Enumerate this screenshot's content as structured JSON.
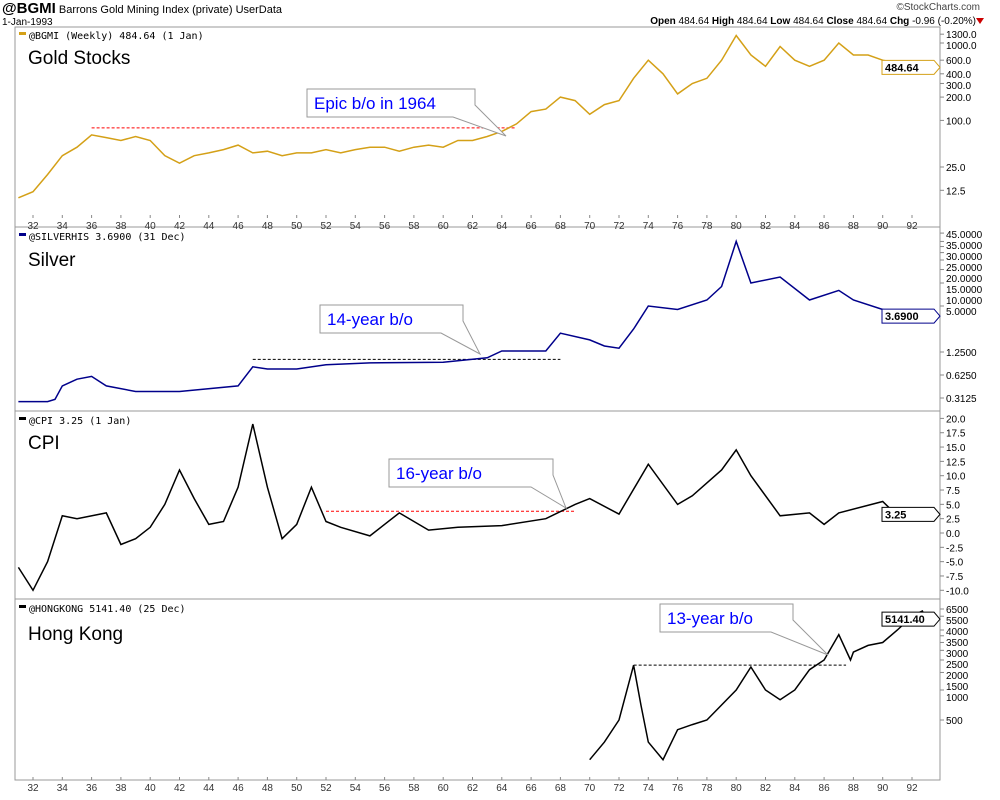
{
  "header": {
    "symbol": "@BGMI",
    "title": "Barrons Gold Mining Index (private)",
    "source": "UserData",
    "date": "1-Jan-1993",
    "brand": "©StockCharts.com",
    "open_label": "Open",
    "open": "484.64",
    "high_label": "High",
    "high": "484.64",
    "low_label": "Low",
    "low": "484.64",
    "close_label": "Close",
    "close": "484.64",
    "chg_label": "Chg",
    "chg": "-0.96 (-0.20%)"
  },
  "chart_data": [
    {
      "type": "line",
      "scale": "log",
      "title": "Gold Stocks",
      "legend": "@BGMI (Weekly) 484.64 (1 Jan)",
      "color": "#d4a017",
      "last_value": "484.64",
      "yticks": [
        "1300.0",
        "1000.0",
        "600.0",
        "400.0",
        "300.0",
        "200.0",
        "100.0",
        "25.0",
        "12.5"
      ],
      "ytick_values": [
        1300,
        1000,
        600,
        400,
        300,
        200,
        100,
        25,
        12.5
      ],
      "annotation": {
        "text": "Epic b/o in 1964",
        "text_color": "#0000ff",
        "line_from": 1936,
        "line_to": 1965,
        "line_value": 80,
        "line_color": "#ff0000"
      },
      "x": [
        1931,
        1932,
        1933,
        1934,
        1935,
        1936,
        1937,
        1938,
        1939,
        1940,
        1941,
        1942,
        1943,
        1944,
        1945,
        1946,
        1947,
        1948,
        1949,
        1950,
        1951,
        1952,
        1953,
        1954,
        1955,
        1956,
        1957,
        1958,
        1959,
        1960,
        1961,
        1962,
        1963,
        1964,
        1965,
        1966,
        1967,
        1968,
        1969,
        1970,
        1971,
        1972,
        1973,
        1974,
        1975,
        1976,
        1977,
        1978,
        1979,
        1980,
        1981,
        1982,
        1983,
        1984,
        1985,
        1986,
        1987,
        1988,
        1989,
        1990,
        1991,
        1992,
        1993
      ],
      "y": [
        10,
        12,
        20,
        35,
        45,
        65,
        60,
        55,
        62,
        55,
        35,
        28,
        35,
        38,
        42,
        48,
        38,
        40,
        35,
        38,
        38,
        42,
        38,
        42,
        45,
        45,
        40,
        45,
        48,
        45,
        55,
        55,
        62,
        72,
        90,
        130,
        140,
        200,
        180,
        120,
        160,
        180,
        350,
        600,
        400,
        220,
        300,
        350,
        600,
        1250,
        700,
        500,
        900,
        600,
        500,
        600,
        1000,
        700,
        700,
        600,
        550,
        500,
        485
      ]
    },
    {
      "type": "line",
      "scale": "log",
      "title": "Silver",
      "legend": "@SILVERHIS 3.6900 (31 Dec)",
      "color": "#00008b",
      "last_value": "3.6900",
      "yticks": [
        "45.0000",
        "35.0000",
        "30.0000",
        "25.0000",
        "20.0000",
        "15.0000",
        "10.0000",
        "5.0000",
        "1.2500",
        "0.6250",
        "0.3125"
      ],
      "ytick_values": [
        45,
        35,
        30,
        25,
        20,
        15,
        10,
        5,
        1.25,
        0.625,
        0.3125
      ],
      "annotation": {
        "text": "14-year b/o",
        "text_color": "#0000ff",
        "line_from": 1947,
        "line_to": 1968,
        "line_value": 1.0,
        "line_color": "#000000"
      },
      "x": [
        1931,
        1933,
        1933.5,
        1934,
        1935,
        1936,
        1937,
        1939,
        1942,
        1946,
        1947,
        1948,
        1950,
        1952,
        1955,
        1960,
        1963,
        1964,
        1967,
        1968,
        1970,
        1971,
        1972,
        1973,
        1974,
        1976,
        1978,
        1979,
        1980,
        1981,
        1983,
        1985,
        1987,
        1988,
        1990,
        1992,
        1993
      ],
      "y": [
        0.28,
        0.28,
        0.3,
        0.45,
        0.55,
        0.6,
        0.45,
        0.38,
        0.38,
        0.45,
        0.8,
        0.75,
        0.75,
        0.85,
        0.9,
        0.92,
        1.05,
        1.29,
        1.29,
        2.2,
        1.8,
        1.5,
        1.4,
        2.5,
        5,
        4.5,
        6,
        9,
        35,
        10,
        12,
        6,
        8,
        6,
        4.5,
        3.9,
        3.69
      ]
    },
    {
      "type": "line",
      "scale": "linear",
      "title": "CPI",
      "legend": "@CPI 3.25 (1 Jan)",
      "color": "#000000",
      "last_value": "3.25",
      "yticks": [
        "20.0",
        "17.5",
        "15.0",
        "12.5",
        "10.0",
        "7.5",
        "5.0",
        "2.5",
        "0.0",
        "-2.5",
        "-5.0",
        "-7.5",
        "-10.0"
      ],
      "ytick_values": [
        20,
        17.5,
        15,
        12.5,
        10,
        7.5,
        5,
        2.5,
        0,
        -2.5,
        -5,
        -7.5,
        -10
      ],
      "ylim": [
        -10,
        20
      ],
      "annotation": {
        "text": "16-year b/o",
        "text_color": "#0000ff",
        "line_from": 1952,
        "line_to": 1969,
        "line_value": 3.8,
        "line_color": "#ff0000"
      },
      "x": [
        1931,
        1932,
        1933,
        1934,
        1935,
        1937,
        1938,
        1939,
        1940,
        1941,
        1942,
        1943,
        1944,
        1945,
        1946,
        1947,
        1948,
        1949,
        1950,
        1951,
        1952,
        1953,
        1955,
        1957,
        1959,
        1961,
        1964,
        1967,
        1969,
        1970,
        1972,
        1974,
        1976,
        1977,
        1979,
        1980,
        1981,
        1983,
        1985,
        1986,
        1987,
        1990,
        1991,
        1992,
        1993
      ],
      "y": [
        -6,
        -10,
        -5,
        3,
        2.5,
        3.5,
        -2,
        -1,
        1,
        5,
        11,
        6,
        1.5,
        2,
        8,
        19,
        8,
        -1,
        1.5,
        8,
        2,
        1,
        -0.5,
        3.5,
        0.5,
        1,
        1.3,
        2.5,
        5,
        6,
        3.3,
        12,
        5,
        6.5,
        11,
        14.5,
        10,
        3,
        3.5,
        1.5,
        3.5,
        5.5,
        3,
        3,
        3.25
      ]
    },
    {
      "type": "line",
      "scale": "log",
      "title": "Hong Kong",
      "legend": "@HONGKONG 5141.40 (25 Dec)",
      "color": "#000000",
      "last_value": "5141.40",
      "yticks": [
        "6500",
        "5500",
        "4000",
        "3500",
        "3000",
        "2500",
        "2000",
        "1500",
        "1000",
        "500"
      ],
      "ytick_values": [
        6500,
        5500,
        4000,
        3500,
        3000,
        2500,
        2000,
        1500,
        1000,
        500
      ],
      "annotation": {
        "text": "13-year b/o",
        "text_color": "#0000ff",
        "line_from": 1973,
        "line_to": 1987.5,
        "line_value": 1775,
        "line_color": "#000000"
      },
      "x": [
        1970,
        1971,
        1972,
        1973,
        1973.5,
        1974,
        1975,
        1976,
        1977,
        1978,
        1980,
        1981,
        1982,
        1983,
        1984,
        1985,
        1986,
        1987,
        1987.8,
        1988,
        1989,
        1990,
        1991,
        1992,
        1992.7,
        1993
      ],
      "y": [
        200,
        300,
        500,
        1775,
        700,
        300,
        200,
        400,
        450,
        500,
        1000,
        1700,
        1000,
        800,
        1000,
        1600,
        2000,
        3600,
        2000,
        2400,
        2800,
        3000,
        4000,
        5500,
        6200,
        5141
      ]
    }
  ],
  "xaxis": {
    "ticks": [
      "32",
      "34",
      "36",
      "38",
      "40",
      "42",
      "44",
      "46",
      "48",
      "50",
      "52",
      "54",
      "56",
      "58",
      "60",
      "62",
      "64",
      "66",
      "68",
      "70",
      "72",
      "74",
      "76",
      "78",
      "80",
      "82",
      "84",
      "86",
      "88",
      "90",
      "92"
    ]
  }
}
